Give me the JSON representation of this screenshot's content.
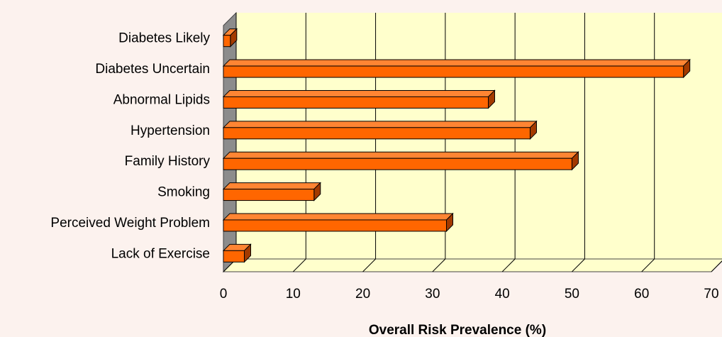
{
  "chart_data": {
    "type": "bar",
    "orientation": "horizontal",
    "three_d": true,
    "categories": [
      "Diabetes Likely",
      "Diabetes Uncertain",
      "Abnormal Lipids",
      "Hypertension",
      "Family History",
      "Smoking",
      "Perceived Weight Problem",
      "Lack of Exercise"
    ],
    "values": [
      1,
      66,
      38,
      44,
      50,
      13,
      32,
      3
    ],
    "xlabel": "Overall Risk Prevalence (%)",
    "xlim": [
      0,
      70
    ],
    "xticks": [
      "0",
      "10",
      "20",
      "30",
      "40",
      "50",
      "60",
      "70"
    ],
    "grid": true,
    "legend": "none",
    "colors": {
      "bar_front": "#ff6600",
      "bar_top": "#ff8533",
      "bar_side": "#a33a00",
      "outline": "#000000",
      "plot_back": "#ffffcc",
      "floor": "#ffffcc",
      "left_wall": "#8c8c8c",
      "background": "#fcf2ee"
    }
  }
}
